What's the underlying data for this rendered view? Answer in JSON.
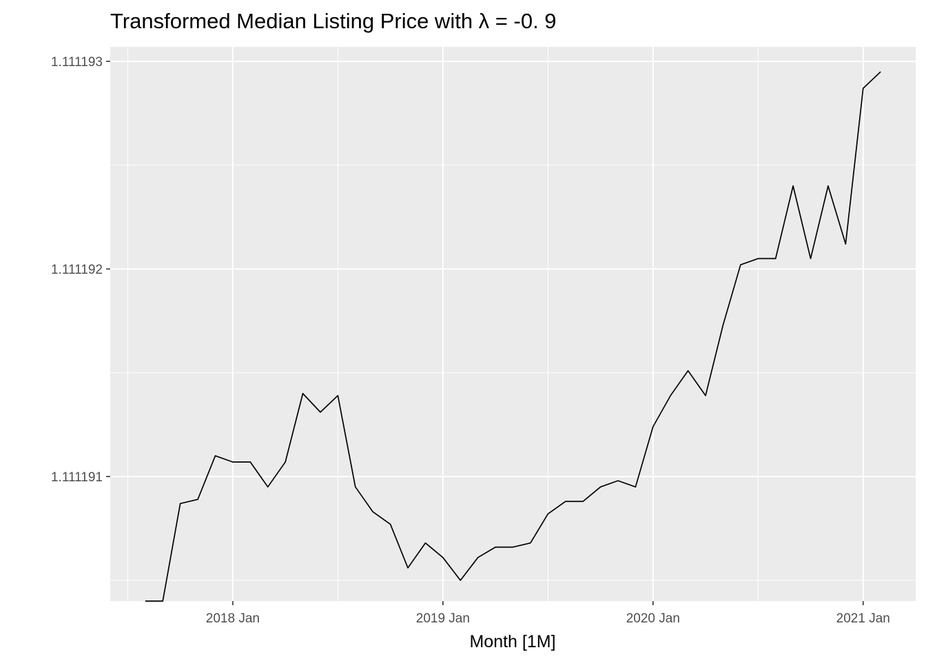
{
  "chart_data": {
    "type": "line",
    "title": "Transformed Median Listing Price with λ = -0. 9",
    "xlabel": "Month [1M]",
    "ylabel": "",
    "x_ticks": [
      {
        "label": "2018 Jan",
        "date": "2018-01"
      },
      {
        "label": "2019 Jan",
        "date": "2019-01"
      },
      {
        "label": "2020 Jan",
        "date": "2020-01"
      },
      {
        "label": "2021 Jan",
        "date": "2021-01"
      }
    ],
    "y_ticks": [
      {
        "label": "1.111191",
        "value": 1.111191
      },
      {
        "label": "1.111192",
        "value": 1.111192
      },
      {
        "label": "1.111193",
        "value": 1.111193
      }
    ],
    "xlim": [
      "2017-06",
      "2021-04"
    ],
    "ylim": [
      1.1111904,
      1.11119307
    ],
    "grid": true,
    "background": "#ebebeb",
    "line_color": "#000000",
    "series": [
      {
        "x": [
          "2017-08",
          "2017-09",
          "2017-10",
          "2017-11",
          "2017-12",
          "2018-01",
          "2018-02",
          "2018-03",
          "2018-04",
          "2018-05",
          "2018-06",
          "2018-07",
          "2018-08",
          "2018-09",
          "2018-10",
          "2018-11",
          "2018-12",
          "2019-01",
          "2019-02",
          "2019-03",
          "2019-04",
          "2019-05",
          "2019-06",
          "2019-07",
          "2019-08",
          "2019-09",
          "2019-10",
          "2019-11",
          "2019-12",
          "2020-01",
          "2020-02",
          "2020-03",
          "2020-04",
          "2020-05",
          "2020-06",
          "2020-07",
          "2020-08",
          "2020-09",
          "2020-10",
          "2020-11",
          "2020-12",
          "2021-01",
          "2021-02"
        ],
        "values": [
          1.1111904,
          1.1111904,
          1.11119087,
          1.11119089,
          1.1111911,
          1.11119107,
          1.11119107,
          1.11119095,
          1.11119107,
          1.1111914,
          1.11119131,
          1.11119139,
          1.11119095,
          1.11119083,
          1.11119077,
          1.11119056,
          1.11119068,
          1.11119061,
          1.1111905,
          1.11119061,
          1.11119066,
          1.11119066,
          1.11119068,
          1.11119082,
          1.11119088,
          1.11119088,
          1.11119095,
          1.11119098,
          1.11119095,
          1.11119124,
          1.11119139,
          1.11119151,
          1.11119139,
          1.11119173,
          1.11119202,
          1.11119205,
          1.11119205,
          1.1111924,
          1.11119205,
          1.1111924,
          1.11119212,
          1.11119287,
          1.11119295
        ]
      }
    ]
  }
}
